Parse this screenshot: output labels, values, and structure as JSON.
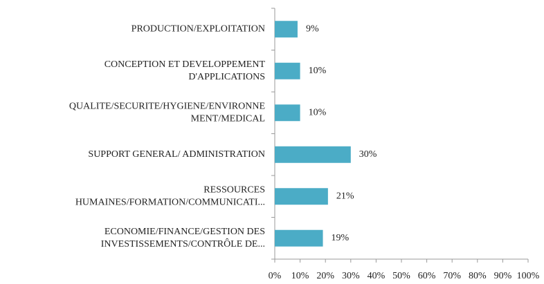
{
  "chart_data": {
    "type": "barh",
    "categories": [
      [
        "PRODUCTION/EXPLOITATION"
      ],
      [
        "CONCEPTION ET DEVELOPPEMENT",
        "D'APPLICATIONS"
      ],
      [
        "QUALITE/SECURITE/HYGIENE/ENVIRONNE",
        "MENT/MEDICAL"
      ],
      [
        "SUPPORT GENERAL/ ADMINISTRATION"
      ],
      [
        "RESSOURCES",
        "HUMAINES/FORMATION/COMMUNICATI..."
      ],
      [
        "ECONOMIE/FINANCE/GESTION DES",
        "INVESTISSEMENTS/CONTRÔLE DE..."
      ]
    ],
    "values": [
      9,
      10,
      10,
      30,
      21,
      19
    ],
    "value_labels": [
      "9%",
      "10%",
      "10%",
      "30%",
      "21%",
      "19%"
    ],
    "color": "#4bacc6",
    "xlim": [
      0,
      100
    ],
    "xticks": [
      {
        "value": 0,
        "label": "0%"
      },
      {
        "value": 10,
        "label": "10%"
      },
      {
        "value": 20,
        "label": "20%"
      },
      {
        "value": 30,
        "label": "30%"
      },
      {
        "value": 40,
        "label": "40%"
      },
      {
        "value": 50,
        "label": "50%"
      },
      {
        "value": 60,
        "label": "60%"
      },
      {
        "value": 70,
        "label": "70%"
      },
      {
        "value": 80,
        "label": "80%"
      },
      {
        "value": 90,
        "label": "90%"
      },
      {
        "value": 100,
        "label": "100%"
      }
    ]
  }
}
